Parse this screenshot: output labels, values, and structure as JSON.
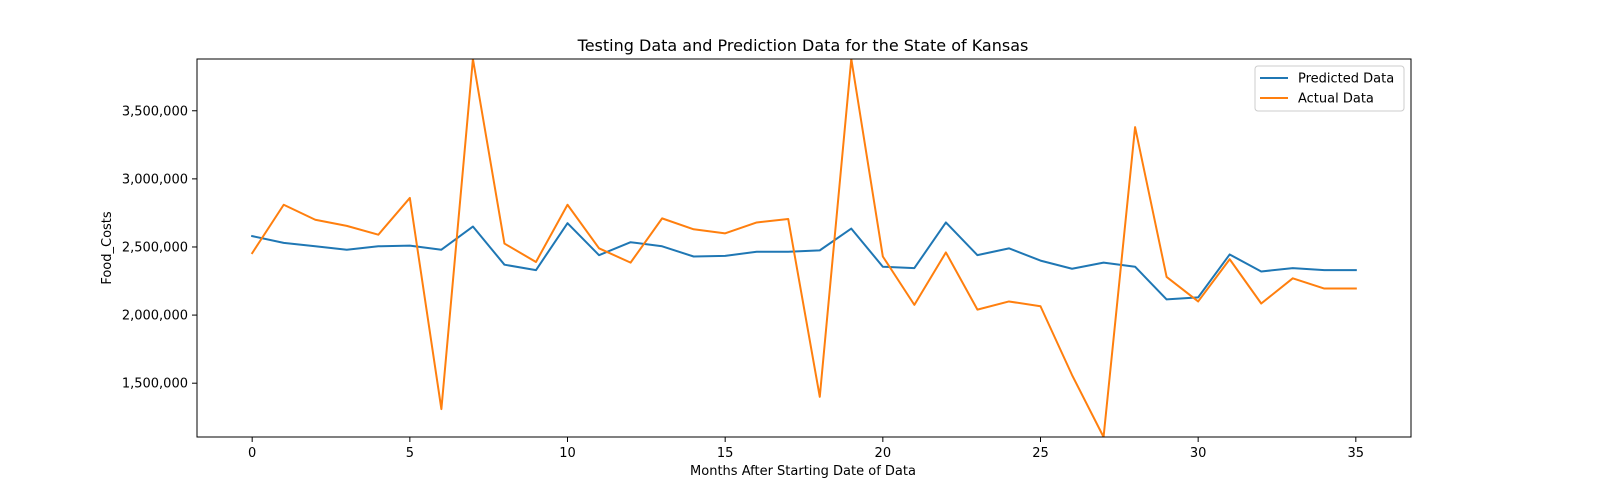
{
  "chart_data": {
    "type": "line",
    "title": "Testing Data and Prediction Data for the State of Kansas",
    "xlabel": "Months After Starting Date of Data",
    "ylabel": "Food_Costs",
    "xlim": [
      -1.75,
      36.75
    ],
    "ylim": [
      1105000,
      3880000
    ],
    "x_ticks": [
      0,
      5,
      10,
      15,
      20,
      25,
      30,
      35
    ],
    "y_ticks": [
      1500000,
      2000000,
      2500000,
      3000000,
      3500000
    ],
    "y_tick_labels": [
      "1,500,000",
      "2,000,000",
      "2,500,000",
      "3,000,000",
      "3,500,000"
    ],
    "grid": false,
    "legend_position": "top-right",
    "x": [
      0,
      1,
      2,
      3,
      4,
      5,
      6,
      7,
      8,
      9,
      10,
      11,
      12,
      13,
      14,
      15,
      16,
      17,
      18,
      19,
      20,
      21,
      22,
      23,
      24,
      25,
      26,
      27,
      28,
      29,
      30,
      31,
      32,
      33,
      34,
      35
    ],
    "series": [
      {
        "name": "Predicted Data",
        "color": "#1f77b4",
        "values": [
          2580000,
          2530000,
          2505000,
          2480000,
          2505000,
          2510000,
          2480000,
          2650000,
          2370000,
          2330000,
          2675000,
          2440000,
          2535000,
          2505000,
          2430000,
          2435000,
          2465000,
          2465000,
          2475000,
          2635000,
          2355000,
          2345000,
          2680000,
          2440000,
          2490000,
          2400000,
          2340000,
          2385000,
          2355000,
          2115000,
          2130000,
          2445000,
          2320000,
          2345000,
          2330000,
          2330000
        ]
      },
      {
        "name": "Actual Data",
        "color": "#ff7f0e",
        "values": [
          2455000,
          2810000,
          2700000,
          2655000,
          2590000,
          2860000,
          1310000,
          3880000,
          2525000,
          2390000,
          2810000,
          2490000,
          2385000,
          2710000,
          2630000,
          2600000,
          2680000,
          2705000,
          1400000,
          3880000,
          2430000,
          2075000,
          2460000,
          2040000,
          2100000,
          2065000,
          1560000,
          1105000,
          3380000,
          2280000,
          2100000,
          2410000,
          2085000,
          2270000,
          2195000,
          2195000
        ]
      }
    ]
  }
}
